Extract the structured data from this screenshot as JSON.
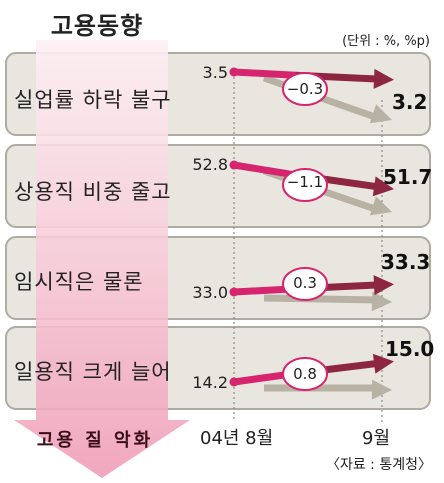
{
  "title": "고용동향",
  "unit_note": "(단위 : %, %p)",
  "source": "〈자료 : 통계청〉",
  "x_ticks": [
    "04년 8월",
    "9월"
  ],
  "trend_arrow_label": "고용 질 악화",
  "colors": {
    "start_line": "#d6246e",
    "end_arrow": "#8c2641",
    "shadow_arrow": "#b8b2a4",
    "panel": "#e9e6df",
    "panel_border": "#b0aba1",
    "trend_arrow": "#f2a7bc"
  },
  "chart_data": {
    "type": "slope",
    "title": "고용동향",
    "unit": "(단위 : %, %p)",
    "x": [
      "04년 8월",
      "9월"
    ],
    "rows": [
      {
        "label": "실업률 하락 불구",
        "start": "3.5",
        "end": "3.2",
        "change": "−0.3"
      },
      {
        "label": "상용직 비중 줄고",
        "start": "52.8",
        "end": "51.7",
        "change": "−1.1"
      },
      {
        "label": "임시직은 물론",
        "start": "33.0",
        "end": "33.3",
        "change": "0.3"
      },
      {
        "label": "일용직 크게 늘어",
        "start": "14.2",
        "end": "15.0",
        "change": "0.8"
      }
    ]
  }
}
